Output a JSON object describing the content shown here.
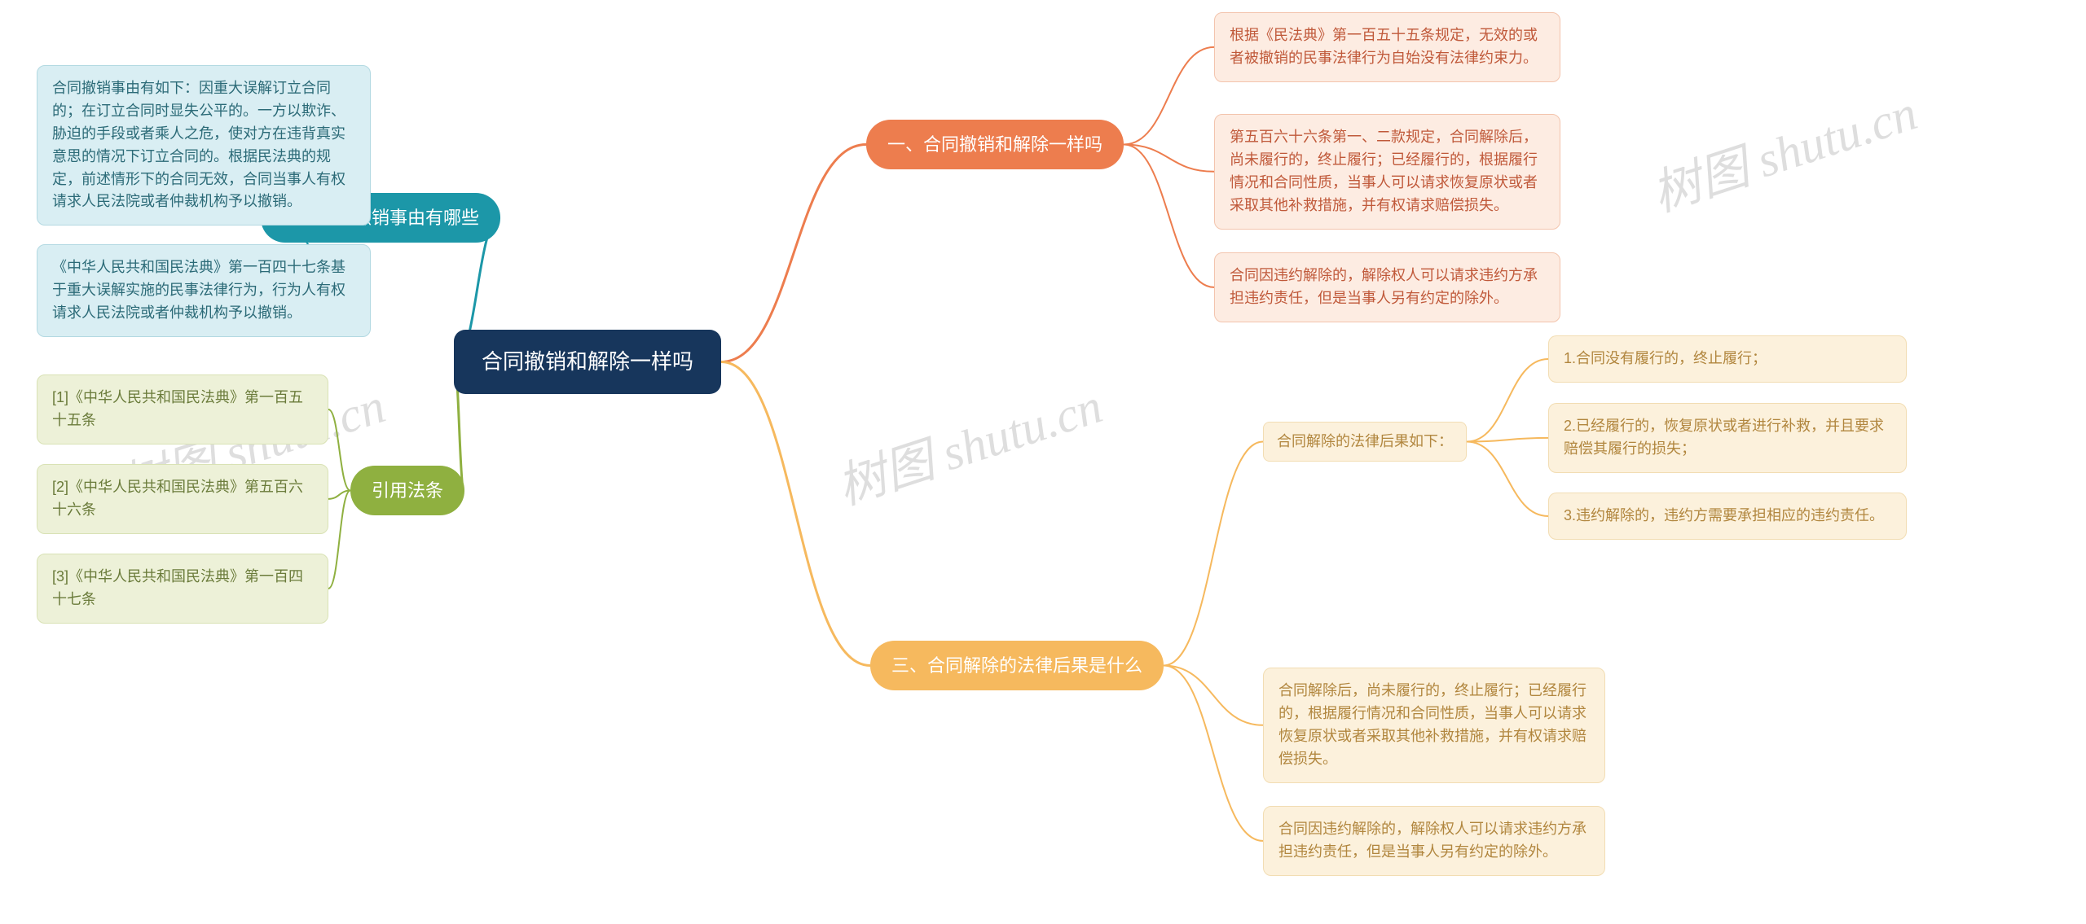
{
  "root": {
    "text": "合同撤销和解除一样吗"
  },
  "branches": {
    "b1": {
      "label": "一、合同撤销和解除一样吗",
      "bg": "#ed7d4e",
      "fg": "#ffffff",
      "stroke": "#ed7d4e"
    },
    "b2": {
      "label": "二、合同撤销事由有哪些",
      "bg": "#1c97a8",
      "fg": "#ffffff",
      "stroke": "#1c97a8"
    },
    "b3": {
      "label": "三、合同解除的法律后果是什么",
      "bg": "#f6b95e",
      "fg": "#ffffff",
      "stroke": "#f6b95e"
    },
    "b4": {
      "label": "引用法条",
      "bg": "#8fb040",
      "fg": "#ffffff",
      "stroke": "#8fb040"
    }
  },
  "leaves": {
    "b1": [
      "根据《民法典》第一百五十五条规定，无效的或者被撤销的民事法律行为自始没有法律约束力。",
      "第五百六十六条第一、二款规定，合同解除后，尚未履行的，终止履行；已经履行的，根据履行情况和合同性质，当事人可以请求恢复原状或者采取其他补救措施，并有权请求赔偿损失。",
      "合同因违约解除的，解除权人可以请求违约方承担违约责任，但是当事人另有约定的除外。"
    ],
    "b2": [
      "合同撤销事由有如下：因重大误解订立合同的；在订立合同时显失公平的。一方以欺诈、胁迫的手段或者乘人之危，使对方在违背真实意思的情况下订立合同的。根据民法典的规定，前述情形下的合同无效，合同当事人有权请求人民法院或者仲裁机构予以撤销。",
      "《中华人民共和国民法典》第一百四十七条基于重大误解实施的民事法律行为，行为人有权请求人民法院或者仲裁机构予以撤销。"
    ],
    "b3_sub": "合同解除的法律后果如下：",
    "b3_subitems": [
      "1.合同没有履行的，终止履行；",
      "2.已经履行的，恢复原状或者进行补救，并且要求赔偿其履行的损失；",
      "3.违约解除的，违约方需要承担相应的违约责任。"
    ],
    "b3_rest": [
      "合同解除后，尚未履行的，终止履行；已经履行的，根据履行情况和合同性质，当事人可以请求恢复原状或者采取其他补救措施，并有权请求赔偿损失。",
      "合同因违约解除的，解除权人可以请求违约方承担违约责任，但是当事人另有约定的除外。"
    ],
    "b4": [
      "[1]《中华人民共和国民法典》第一百五十五条",
      "[2]《中华人民共和国民法典》第五百六十六条",
      "[3]《中华人民共和国民法典》第一百四十七条"
    ]
  },
  "colors": {
    "b1_leaf_bg": "#fdece2",
    "b1_leaf_fg": "#c0593a",
    "b1_leaf_border": "#f3c4ad",
    "b2_leaf_bg": "#d9eef3",
    "b2_leaf_fg": "#2b6a77",
    "b2_leaf_border": "#b3d9e2",
    "b3_leaf_bg": "#fcf1dc",
    "b3_leaf_fg": "#b1863e",
    "b3_leaf_border": "#f2ddb3",
    "b4_leaf_bg": "#edf1d8",
    "b4_leaf_fg": "#6a7b3a",
    "b4_leaf_border": "#d9e2b5",
    "root_bg": "#17365c"
  },
  "watermark": "树图 shutu.cn"
}
